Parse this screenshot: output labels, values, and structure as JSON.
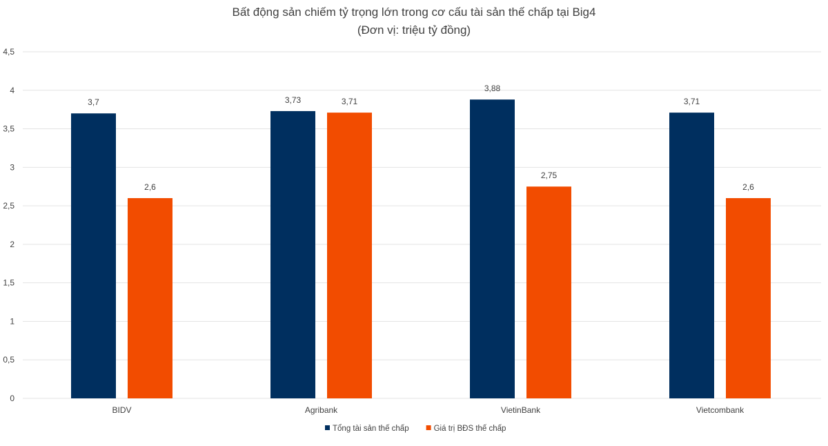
{
  "chart_data": {
    "type": "bar",
    "title": "Bất động sản chiếm tỷ trọng lớn trong cơ cấu tài sản thế chấp tại Big4",
    "subtitle": "(Đơn vị: triệu tỷ đồng)",
    "categories": [
      "BIDV",
      "Agribank",
      "VietinBank",
      "Vietcombank"
    ],
    "series": [
      {
        "name": "Tổng tài sản thế chấp",
        "color": "#002f5f",
        "values": [
          3.7,
          3.73,
          3.88,
          3.71
        ],
        "labels": [
          "3,7",
          "3,73",
          "3,88",
          "3,71"
        ]
      },
      {
        "name": "Giá trị BĐS thế chấp",
        "color": "#f24c00",
        "values": [
          2.6,
          3.71,
          2.75,
          2.6
        ],
        "labels": [
          "2,6",
          "3,71",
          "2,75",
          "2,6"
        ]
      }
    ],
    "ylim": [
      0,
      4.5
    ],
    "yticks": [
      0,
      0.5,
      1,
      1.5,
      2,
      2.5,
      3,
      3.5,
      4,
      4.5
    ],
    "ytick_labels": [
      "0",
      "0,5",
      "1",
      "1,5",
      "2",
      "2,5",
      "3",
      "3,5",
      "4",
      "4,5"
    ],
    "grid": true,
    "legend_position": "bottom-center"
  }
}
